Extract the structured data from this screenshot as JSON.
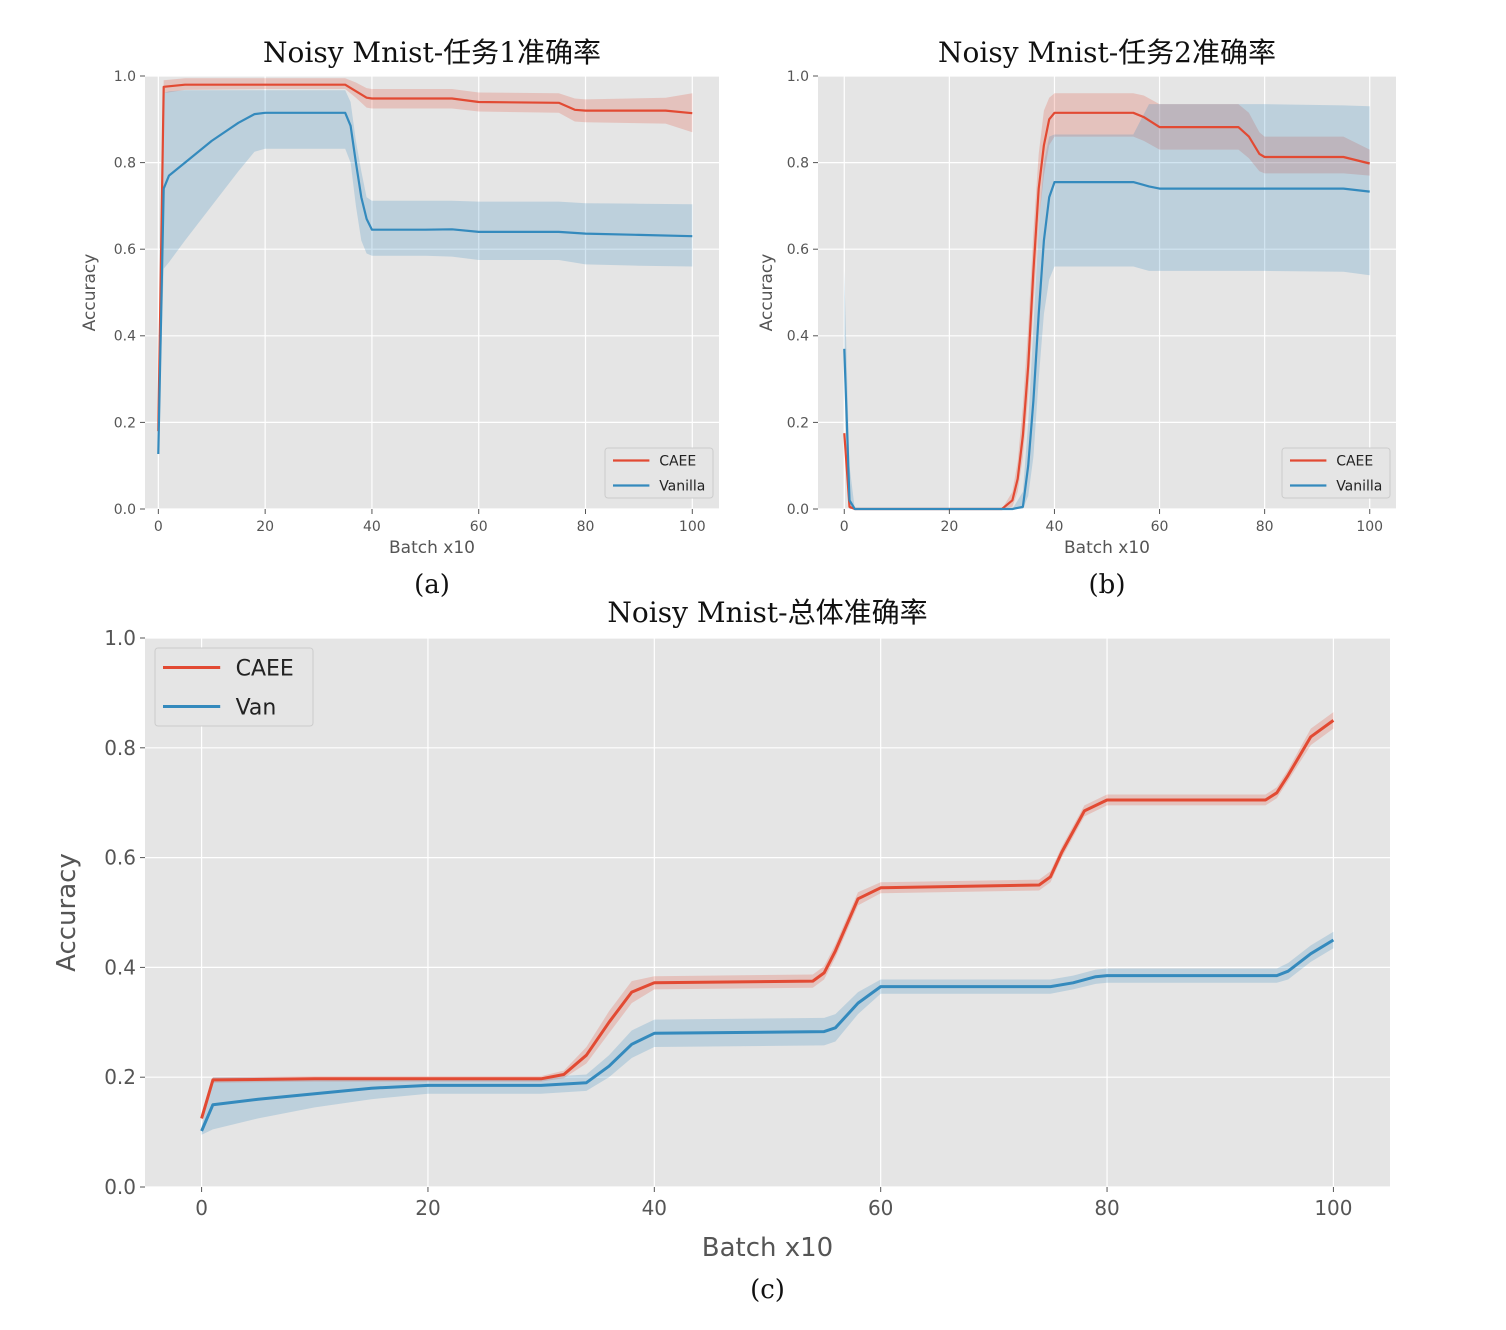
{
  "colors": {
    "caee": "#e24a33",
    "vanilla": "#348abd",
    "panel_bg": "#e5e5e5",
    "grid": "#ffffff"
  },
  "chart_data": [
    {
      "type": "line",
      "title": "Noisy Mnist-任务1准确率",
      "caption": "(a)",
      "xlabel": "Batch x10",
      "ylabel": "Accuracy",
      "xlim": [
        -2.5,
        105
      ],
      "ylim": [
        0,
        1.0
      ],
      "xticks": [
        0,
        20,
        40,
        60,
        80,
        100
      ],
      "xtick_labels": [
        "0",
        "20",
        "40",
        "60",
        "80",
        "100"
      ],
      "yticks": [
        0,
        0.2,
        0.4,
        0.6,
        0.8,
        1.0
      ],
      "ytick_labels": [
        "0.0",
        "0.2",
        "0.4",
        "0.6",
        "0.8",
        "1.0"
      ],
      "grid": true,
      "legend_position": "lower-right",
      "series": [
        {
          "name": "CAEE",
          "color_key": "caee",
          "x": [
            0,
            1,
            5,
            20,
            35,
            37,
            39,
            40,
            55,
            60,
            75,
            78,
            80,
            95,
            100
          ],
          "y": [
            0.18,
            0.975,
            0.98,
            0.98,
            0.98,
            0.965,
            0.95,
            0.948,
            0.948,
            0.94,
            0.938,
            0.922,
            0.92,
            0.92,
            0.914
          ],
          "y_low": [
            0.17,
            0.96,
            0.968,
            0.97,
            0.97,
            0.95,
            0.927,
            0.925,
            0.925,
            0.918,
            0.915,
            0.895,
            0.893,
            0.89,
            0.87
          ],
          "y_high": [
            0.19,
            0.99,
            0.995,
            0.995,
            0.995,
            0.985,
            0.972,
            0.97,
            0.97,
            0.962,
            0.96,
            0.948,
            0.946,
            0.95,
            0.96
          ]
        },
        {
          "name": "Vanilla",
          "color_key": "vanilla",
          "x": [
            0,
            1,
            2,
            5,
            10,
            15,
            18,
            20,
            30,
            35,
            36,
            37,
            38,
            39,
            40,
            50,
            55,
            60,
            75,
            80,
            90,
            100
          ],
          "y": [
            0.127,
            0.74,
            0.77,
            0.8,
            0.85,
            0.892,
            0.912,
            0.915,
            0.915,
            0.915,
            0.885,
            0.8,
            0.72,
            0.67,
            0.645,
            0.645,
            0.646,
            0.64,
            0.64,
            0.636,
            0.633,
            0.63
          ],
          "y_low": [
            0.12,
            0.555,
            0.57,
            0.62,
            0.7,
            0.78,
            0.825,
            0.832,
            0.832,
            0.832,
            0.8,
            0.7,
            0.62,
            0.59,
            0.585,
            0.585,
            0.583,
            0.575,
            0.575,
            0.565,
            0.562,
            0.56
          ],
          "y_high": [
            0.135,
            0.96,
            0.965,
            0.967,
            0.967,
            0.967,
            0.967,
            0.967,
            0.967,
            0.967,
            0.94,
            0.85,
            0.78,
            0.72,
            0.712,
            0.712,
            0.712,
            0.71,
            0.71,
            0.706,
            0.705,
            0.704
          ]
        }
      ]
    },
    {
      "type": "line",
      "title": "Noisy Mnist-任务2准确率",
      "caption": "(b)",
      "xlabel": "Batch x10",
      "ylabel": "Accuracy",
      "xlim": [
        -5,
        105
      ],
      "ylim": [
        0,
        1.0
      ],
      "xticks": [
        0,
        20,
        40,
        60,
        80,
        100
      ],
      "xtick_labels": [
        "0",
        "20",
        "40",
        "60",
        "80",
        "100"
      ],
      "yticks": [
        0,
        0.2,
        0.4,
        0.6,
        0.8,
        1.0
      ],
      "ytick_labels": [
        "0.0",
        "0.2",
        "0.4",
        "0.6",
        "0.8",
        "1.0"
      ],
      "grid": true,
      "legend_position": "lower-right",
      "series": [
        {
          "name": "CAEE",
          "color_key": "caee",
          "x": [
            0,
            1,
            2,
            30,
            32,
            33,
            34,
            35,
            36,
            37,
            38,
            39,
            40,
            55,
            57,
            60,
            75,
            77,
            79,
            80,
            95,
            100
          ],
          "y": [
            0.175,
            0.005,
            0.0,
            0.0,
            0.02,
            0.07,
            0.17,
            0.33,
            0.55,
            0.74,
            0.84,
            0.9,
            0.915,
            0.915,
            0.905,
            0.882,
            0.882,
            0.86,
            0.82,
            0.813,
            0.813,
            0.798
          ],
          "y_low": [
            0.17,
            0.0,
            0.0,
            0.0,
            0.005,
            0.04,
            0.12,
            0.26,
            0.47,
            0.66,
            0.77,
            0.84,
            0.86,
            0.86,
            0.85,
            0.83,
            0.83,
            0.81,
            0.78,
            0.775,
            0.775,
            0.77
          ],
          "y_high": [
            0.18,
            0.01,
            0.0,
            0.0,
            0.04,
            0.11,
            0.24,
            0.42,
            0.64,
            0.82,
            0.92,
            0.95,
            0.96,
            0.96,
            0.955,
            0.935,
            0.935,
            0.915,
            0.87,
            0.86,
            0.86,
            0.83
          ]
        },
        {
          "name": "Vanilla",
          "color_key": "vanilla",
          "x": [
            0,
            1,
            2,
            32,
            34,
            35,
            36,
            37,
            38,
            39,
            40,
            55,
            58,
            60,
            80,
            95,
            100
          ],
          "y": [
            0.37,
            0.02,
            0.0,
            0.0,
            0.005,
            0.1,
            0.25,
            0.45,
            0.62,
            0.72,
            0.755,
            0.755,
            0.745,
            0.74,
            0.74,
            0.74,
            0.733
          ],
          "y_low": [
            0.36,
            0.0,
            0.0,
            0.0,
            0.0,
            0.03,
            0.12,
            0.3,
            0.45,
            0.53,
            0.56,
            0.56,
            0.55,
            0.55,
            0.55,
            0.548,
            0.54
          ],
          "y_high": [
            0.55,
            0.1,
            0.0,
            0.0,
            0.04,
            0.2,
            0.42,
            0.65,
            0.8,
            0.86,
            0.865,
            0.865,
            0.935,
            0.935,
            0.935,
            0.932,
            0.93
          ]
        }
      ]
    },
    {
      "type": "line",
      "title": "Noisy Mnist-总体准确率",
      "caption": "(c)",
      "xlabel": "Batch x10",
      "ylabel": "Accuracy",
      "xlim": [
        -5,
        105
      ],
      "ylim": [
        0,
        1.0
      ],
      "xticks": [
        0,
        20,
        40,
        60,
        80,
        100
      ],
      "xtick_labels": [
        "0",
        "20",
        "40",
        "60",
        "80",
        "100"
      ],
      "yticks": [
        0,
        0.2,
        0.4,
        0.6,
        0.8,
        1.0
      ],
      "ytick_labels": [
        "0.0",
        "0.2",
        "0.4",
        "0.6",
        "0.8",
        "1.0"
      ],
      "grid": true,
      "legend_position": "upper-left",
      "series": [
        {
          "name": "CAEE",
          "color_key": "caee",
          "x": [
            0,
            1,
            10,
            30,
            32,
            34,
            36,
            38,
            40,
            54,
            55,
            56,
            58,
            60,
            74,
            75,
            76,
            78,
            80,
            94,
            95,
            96,
            98,
            100
          ],
          "y": [
            0.125,
            0.195,
            0.197,
            0.197,
            0.205,
            0.24,
            0.3,
            0.355,
            0.372,
            0.375,
            0.39,
            0.43,
            0.525,
            0.545,
            0.55,
            0.565,
            0.61,
            0.685,
            0.705,
            0.705,
            0.718,
            0.75,
            0.82,
            0.85
          ],
          "y_low": [
            0.12,
            0.19,
            0.192,
            0.192,
            0.198,
            0.225,
            0.28,
            0.335,
            0.36,
            0.363,
            0.378,
            0.418,
            0.513,
            0.535,
            0.54,
            0.555,
            0.6,
            0.675,
            0.695,
            0.695,
            0.708,
            0.74,
            0.805,
            0.835
          ],
          "y_high": [
            0.13,
            0.2,
            0.202,
            0.202,
            0.212,
            0.255,
            0.32,
            0.375,
            0.384,
            0.387,
            0.402,
            0.442,
            0.537,
            0.555,
            0.56,
            0.575,
            0.62,
            0.695,
            0.715,
            0.715,
            0.728,
            0.76,
            0.835,
            0.865
          ]
        },
        {
          "name": "Van",
          "color_key": "vanilla",
          "x": [
            0,
            1,
            5,
            10,
            15,
            20,
            30,
            34,
            36,
            38,
            40,
            55,
            56,
            58,
            60,
            75,
            77,
            79,
            80,
            95,
            96,
            98,
            100
          ],
          "y": [
            0.102,
            0.15,
            0.16,
            0.17,
            0.18,
            0.185,
            0.185,
            0.19,
            0.22,
            0.26,
            0.28,
            0.283,
            0.29,
            0.335,
            0.365,
            0.365,
            0.372,
            0.383,
            0.385,
            0.385,
            0.393,
            0.425,
            0.45
          ],
          "y_low": [
            0.095,
            0.105,
            0.125,
            0.145,
            0.16,
            0.17,
            0.17,
            0.175,
            0.2,
            0.235,
            0.255,
            0.258,
            0.265,
            0.315,
            0.352,
            0.352,
            0.36,
            0.37,
            0.372,
            0.372,
            0.378,
            0.41,
            0.435
          ],
          "y_high": [
            0.11,
            0.2,
            0.2,
            0.2,
            0.2,
            0.2,
            0.2,
            0.205,
            0.24,
            0.285,
            0.305,
            0.308,
            0.315,
            0.355,
            0.378,
            0.378,
            0.385,
            0.396,
            0.398,
            0.398,
            0.408,
            0.44,
            0.465
          ]
        }
      ]
    }
  ]
}
